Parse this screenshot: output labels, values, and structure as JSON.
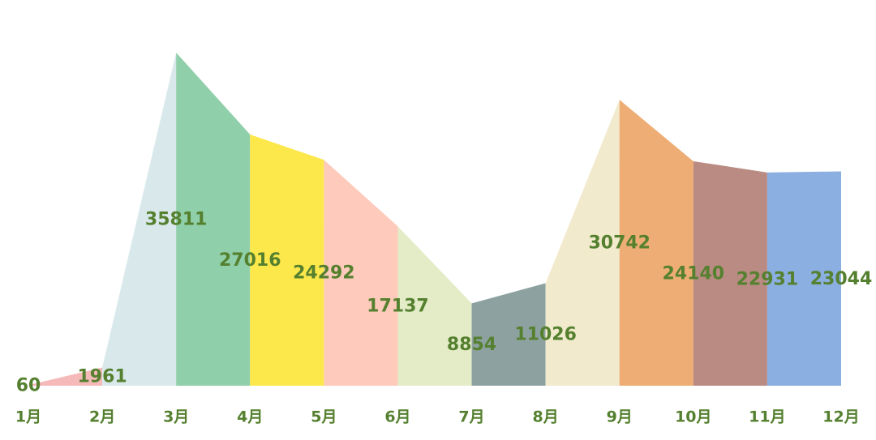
{
  "chart_data": {
    "type": "area",
    "categories": [
      "1月",
      "2月",
      "3月",
      "4月",
      "5月",
      "6月",
      "7月",
      "8月",
      "9月",
      "10月",
      "11月",
      "12月"
    ],
    "values": [
      60,
      1961,
      35811,
      27016,
      24292,
      17137,
      8854,
      11026,
      30742,
      24140,
      22931,
      23044
    ],
    "colors": [
      "#f4b9b8",
      "#d9e9eb",
      "#8fcfa9",
      "#fde84b",
      "#fdcabb",
      "#e3ecc7",
      "#8da2a0",
      "#f2eacd",
      "#eead74",
      "#b98b82",
      "#8bafe0"
    ]
  }
}
